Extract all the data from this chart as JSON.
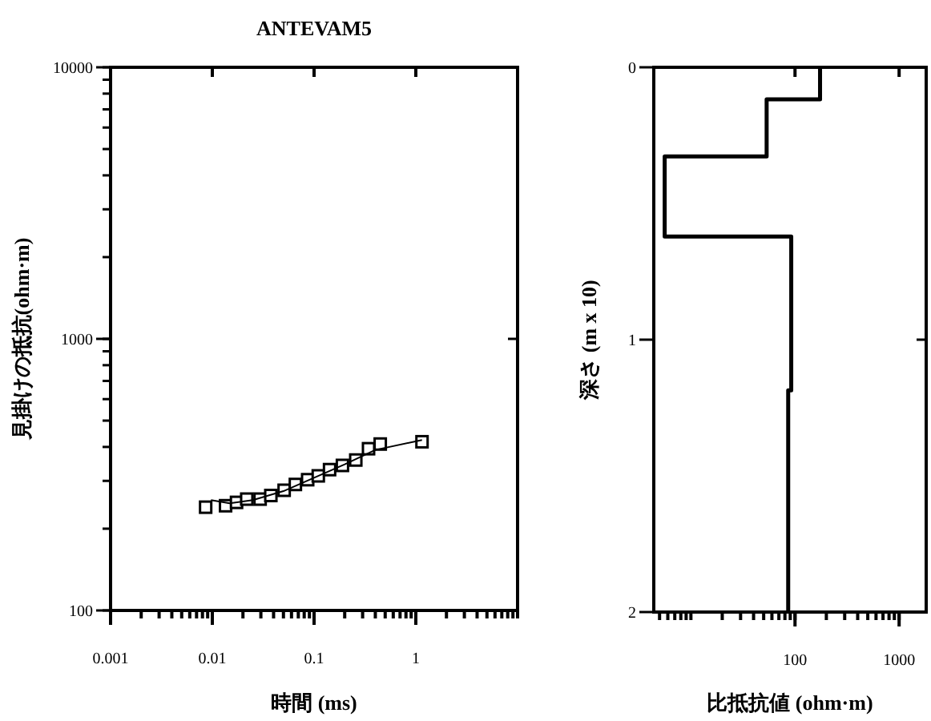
{
  "chart_data": [
    {
      "type": "scatter",
      "title": "ANTEVAM5",
      "xlabel": "時間 (ms)",
      "ylabel": "見掛けの抵抗(ohm·m)",
      "log": "xy",
      "grid": false,
      "xlim": [
        0.001,
        10
      ],
      "xticks": [
        0.001,
        0.01,
        0.1,
        1
      ],
      "ylim": [
        100,
        10000
      ],
      "yticks": [
        100,
        1000,
        10000
      ],
      "series": [
        {
          "color": "#000000",
          "marker": "square",
          "x": [
            0.0086,
            0.0135,
            0.0173,
            0.0218,
            0.0295,
            0.0376,
            0.0508,
            0.0655,
            0.0865,
            0.11,
            0.142,
            0.19,
            0.257,
            0.343,
            0.447,
            1.15
          ],
          "values": [
            240,
            243,
            250,
            257,
            257,
            265,
            277,
            291,
            303,
            313,
            330,
            342,
            358,
            394,
            410,
            418
          ]
        },
        {
          "type": "line",
          "color": "#000000",
          "x": [
            0.0097,
            0.0148,
            0.025,
            0.05,
            0.1,
            0.2,
            0.4,
            1.15
          ],
          "values": [
            255,
            248,
            255,
            275,
            308,
            345,
            390,
            424
          ]
        }
      ]
    },
    {
      "type": "line",
      "xlabel": "比抵抗値 (ohm·m)",
      "ylabel": "深さ (m x 10)",
      "log": "x",
      "grid": false,
      "xlim": [
        4.4,
        1820
      ],
      "xticks": [
        100,
        1000
      ],
      "ylim": [
        2,
        0
      ],
      "yticks": [
        0,
        1,
        2
      ],
      "series": [
        {
          "color": "#000000",
          "x": [
            174,
            174,
            53.4,
            53.4,
            5.6,
            5.6,
            92,
            92,
            86,
            86
          ],
          "values": [
            0,
            0.118,
            0.118,
            0.327,
            0.327,
            0.621,
            0.621,
            1.186,
            1.186,
            2
          ]
        }
      ]
    }
  ]
}
